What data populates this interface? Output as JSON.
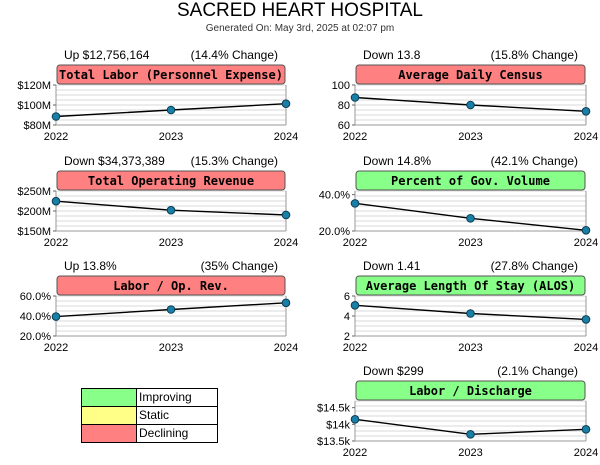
{
  "header": {
    "title": "SACRED HEART HOSPITAL",
    "subtitle": "Generated On: May 3rd, 2025 at 02:07 pm"
  },
  "colors": {
    "improving": "#88ff88",
    "static": "#ffff88",
    "declining": "#ff8080",
    "line": "#000000",
    "marker": "#1a7fa6"
  },
  "legend": [
    {
      "label": "Improving",
      "color": "#88ff88"
    },
    {
      "label": "Static",
      "color": "#ffff88"
    },
    {
      "label": "Declining",
      "color": "#ff8080"
    }
  ],
  "chart_data": [
    {
      "type": "line",
      "title": "Total Labor (Personnel Expense)",
      "status": "declining",
      "delta": "Up $12,756,164",
      "change": "(14.4% Change)",
      "x": [
        "2022",
        "2023",
        "2024"
      ],
      "values": [
        88.5,
        95,
        101.3
      ],
      "yticks": [
        80,
        100,
        120
      ],
      "ytick_labels": [
        "$80M",
        "$100M",
        "$120M"
      ],
      "ylim": [
        80,
        120
      ]
    },
    {
      "type": "line",
      "title": "Average Daily Census",
      "status": "declining",
      "delta": "Down 13.8",
      "change": "(15.8% Change)",
      "x": [
        "2022",
        "2023",
        "2024"
      ],
      "values": [
        87.5,
        80,
        73.7
      ],
      "yticks": [
        60,
        80,
        100
      ],
      "ytick_labels": [
        "60",
        "80",
        "100"
      ],
      "ylim": [
        60,
        100
      ]
    },
    {
      "type": "line",
      "title": "Total Operating Revenue",
      "status": "declining",
      "delta": "Down $34,373,389",
      "change": "(15.3% Change)",
      "x": [
        "2022",
        "2023",
        "2024"
      ],
      "values": [
        224.5,
        202,
        190.1
      ],
      "yticks": [
        150,
        200,
        250
      ],
      "ytick_labels": [
        "$150M",
        "$200M",
        "$250M"
      ],
      "ylim": [
        150,
        250
      ]
    },
    {
      "type": "line",
      "title": "Percent of Gov. Volume",
      "status": "improving",
      "delta": "Down 14.8%",
      "change": "(42.1% Change)",
      "x": [
        "2022",
        "2023",
        "2024"
      ],
      "values": [
        35.2,
        27,
        20.4
      ],
      "yticks": [
        20,
        40
      ],
      "ytick_labels": [
        "20.0%",
        "40.0%"
      ],
      "ylim": [
        20,
        42
      ]
    },
    {
      "type": "line",
      "title": "Labor / Op. Rev.",
      "status": "declining",
      "delta": "Up 13.8%",
      "change": "(35% Change)",
      "x": [
        "2022",
        "2023",
        "2024"
      ],
      "values": [
        39.4,
        46.5,
        53.2
      ],
      "yticks": [
        20,
        40,
        60
      ],
      "ytick_labels": [
        "20.0%",
        "40.0%",
        "60.0%"
      ],
      "ylim": [
        20,
        60
      ]
    },
    {
      "type": "line",
      "title": "Average Length Of Stay (ALOS)",
      "status": "improving",
      "delta": "Down 1.41",
      "change": "(27.8% Change)",
      "x": [
        "2022",
        "2023",
        "2024"
      ],
      "values": [
        5.07,
        4.25,
        3.66
      ],
      "yticks": [
        2,
        4,
        6
      ],
      "ytick_labels": [
        "2",
        "4",
        "6"
      ],
      "ylim": [
        2,
        6
      ]
    },
    {
      "type": "line",
      "title": "Labor / Discharge",
      "status": "improving",
      "delta": "Down $299",
      "change": "(2.1% Change)",
      "x": [
        "2022",
        "2023",
        "2024"
      ],
      "values": [
        14150,
        13700,
        13850
      ],
      "yticks": [
        13500,
        14000,
        14500
      ],
      "ytick_labels": [
        "$13.5k",
        "$14k",
        "$14.5k"
      ],
      "ylim": [
        13500,
        14700
      ]
    }
  ]
}
